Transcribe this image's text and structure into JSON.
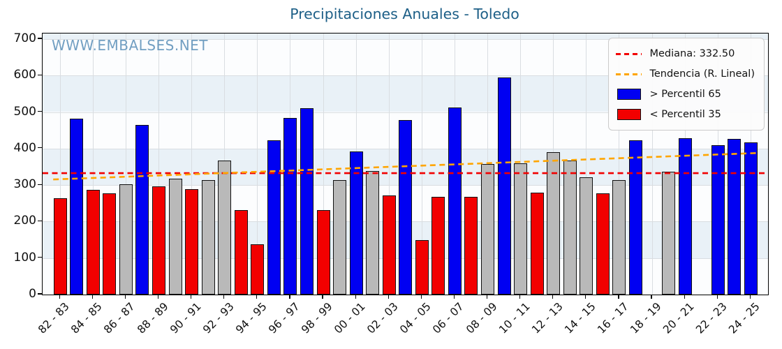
{
  "title": "Precipitaciones Anuales - Toledo",
  "watermark": "WWW.EMBALSES.NET",
  "legend": {
    "median_label": "Mediana: 332.50",
    "trend_label": "Tendencia (R. Lineal)",
    "above_label": "> Percentil 65",
    "below_label": "< Percentil 35"
  },
  "colors": {
    "above": "#0000f2",
    "below": "#f20000",
    "mid": "#b9b9b9",
    "median_line": "#f20000",
    "trend_line": "#ffa500",
    "title": "#1d5f87",
    "watermark": "#5f93ba",
    "band": "#e9f1f7",
    "grid": "#d9dde1"
  },
  "chart_data": {
    "type": "bar",
    "title": "Precipitaciones Anuales - Toledo",
    "xlabel": "",
    "ylabel": "",
    "ylim": [
      0,
      715
    ],
    "yticks": [
      0,
      100,
      200,
      300,
      400,
      500,
      600,
      700
    ],
    "xtick_step": 2,
    "grid": true,
    "legend_position": "upper right",
    "median": 332.5,
    "trend": {
      "value_at_first_bar": 316,
      "value_at_last_bar": 387
    },
    "bars": [
      {
        "season": "82 - 83",
        "value": 262,
        "class": "below"
      },
      {
        "season": "83 - 84",
        "value": 480,
        "class": "above"
      },
      {
        "season": "84 - 85",
        "value": 285,
        "class": "below"
      },
      {
        "season": "85 - 86",
        "value": 276,
        "class": "below"
      },
      {
        "season": "86 - 87",
        "value": 301,
        "class": "mid"
      },
      {
        "season": "87 - 88",
        "value": 462,
        "class": "above"
      },
      {
        "season": "88 - 89",
        "value": 294,
        "class": "below"
      },
      {
        "season": "89 - 90",
        "value": 316,
        "class": "mid"
      },
      {
        "season": "90 - 91",
        "value": 286,
        "class": "below"
      },
      {
        "season": "91 - 92",
        "value": 311,
        "class": "mid"
      },
      {
        "season": "92 - 93",
        "value": 365,
        "class": "mid"
      },
      {
        "season": "93 - 94",
        "value": 230,
        "class": "below"
      },
      {
        "season": "94 - 95",
        "value": 135,
        "class": "below"
      },
      {
        "season": "95 - 96",
        "value": 420,
        "class": "above"
      },
      {
        "season": "96 - 97",
        "value": 481,
        "class": "above"
      },
      {
        "season": "97 - 98",
        "value": 509,
        "class": "above"
      },
      {
        "season": "98 - 99",
        "value": 229,
        "class": "below"
      },
      {
        "season": "99 - 00",
        "value": 312,
        "class": "mid"
      },
      {
        "season": "00 - 01",
        "value": 391,
        "class": "above"
      },
      {
        "season": "01 - 02",
        "value": 336,
        "class": "mid"
      },
      {
        "season": "02 - 03",
        "value": 270,
        "class": "below"
      },
      {
        "season": "03 - 04",
        "value": 477,
        "class": "above"
      },
      {
        "season": "04 - 05",
        "value": 148,
        "class": "below"
      },
      {
        "season": "05 - 06",
        "value": 265,
        "class": "below"
      },
      {
        "season": "06 - 07",
        "value": 511,
        "class": "above"
      },
      {
        "season": "07 - 08",
        "value": 265,
        "class": "below"
      },
      {
        "season": "08 - 09",
        "value": 356,
        "class": "mid"
      },
      {
        "season": "09 - 10",
        "value": 592,
        "class": "above"
      },
      {
        "season": "10 - 11",
        "value": 358,
        "class": "mid"
      },
      {
        "season": "11 - 12",
        "value": 278,
        "class": "below"
      },
      {
        "season": "12 - 13",
        "value": 389,
        "class": "mid"
      },
      {
        "season": "13 - 14",
        "value": 365,
        "class": "mid"
      },
      {
        "season": "14 - 15",
        "value": 319,
        "class": "mid"
      },
      {
        "season": "15 - 16",
        "value": 276,
        "class": "below"
      },
      {
        "season": "16 - 17",
        "value": 311,
        "class": "mid"
      },
      {
        "season": "17 - 18",
        "value": 420,
        "class": "above"
      },
      {
        "season": "18 - 19",
        "value": null,
        "class": "none"
      },
      {
        "season": "19 - 20",
        "value": 334,
        "class": "mid"
      },
      {
        "season": "20 - 21",
        "value": 427,
        "class": "above"
      },
      {
        "season": "21 - 22",
        "value": null,
        "class": "none"
      },
      {
        "season": "22 - 23",
        "value": 407,
        "class": "above"
      },
      {
        "season": "23 - 24",
        "value": 425,
        "class": "above"
      },
      {
        "season": "24 - 25",
        "value": 415,
        "class": "above"
      }
    ]
  }
}
